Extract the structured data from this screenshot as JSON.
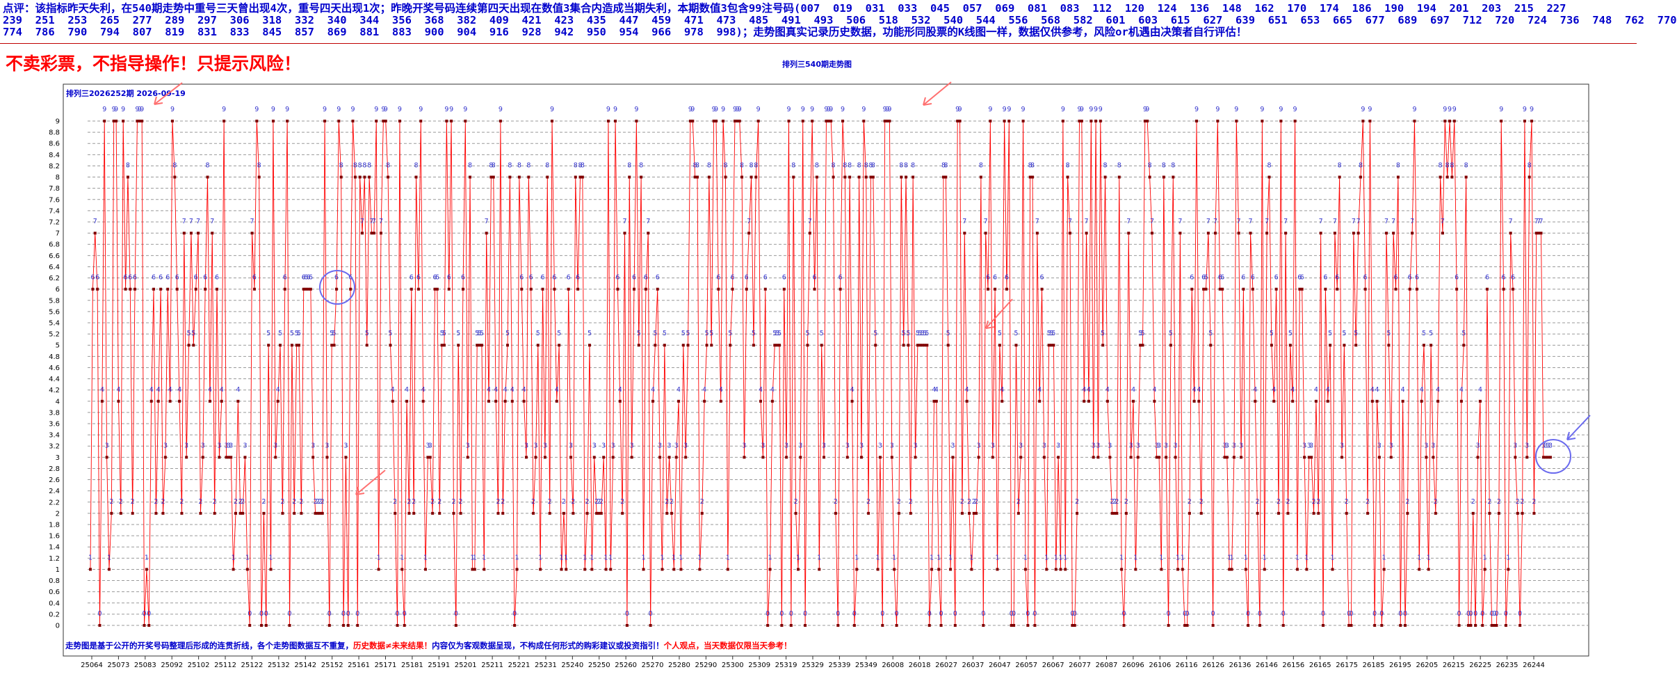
{
  "commentary": "点评：该指标昨天失利，在540期走势中重号三天曾出现4次，重号四天出现1次；昨晚开奖号码连续第四天出现在数值3集合内造成当期失利，本期数值3包含99注号码(007  019  031  033  045  057  069  081  083  112  120  124  136  148  162  170  174  186  190  194  201  203  215  227\n239  251  253  265  277  289  297  306  318  332  340  344  356  368  382  409  421  423  435  447  459  471  473  485  491  493  506  518  532  540  544  556  568  582  601  603  615  627  639  651  653  665  677  689  697  712  720  724  736  748  762  770\n774  786  790  794  807  819  831  833  845  857  869  881  883  900  904  916  928  942  950  954  966  978  998)；走势图真实记录历史数据，功能形同股票的K线图一样，数据仅供参考，风险or机遇由决策者自行评估！",
  "warning": "不卖彩票，不指导操作！只提示风险！",
  "chart_data": {
    "type": "line",
    "title": "排列三540期走势图",
    "inner_title": "排列三2026252期  2026-09-19",
    "y_ticks": [
      "0",
      "0.2",
      "0.4",
      "0.6",
      "0.8",
      "1",
      "1.2",
      "1.4",
      "1.6",
      "1.8",
      "2",
      "2.2",
      "2.4",
      "2.6",
      "2.8",
      "3",
      "3.2",
      "3.4",
      "3.6",
      "3.8",
      "4",
      "4.2",
      "4.4",
      "4.6",
      "4.8",
      "5",
      "5.2",
      "5.4",
      "5.6",
      "5.8",
      "6",
      "6.2",
      "6.4",
      "6.6",
      "6.8",
      "7",
      "7.2",
      "7.4",
      "7.6",
      "7.8",
      "8",
      "8.2",
      "8.4",
      "8.6",
      "8.8",
      "9"
    ],
    "ylim": [
      0,
      9
    ],
    "x_labels": [
      "25064",
      "25073",
      "25083",
      "25092",
      "25102",
      "25112",
      "25122",
      "25132",
      "25142",
      "25152",
      "25161",
      "25171",
      "25181",
      "25191",
      "25201",
      "25211",
      "25221",
      "25231",
      "25240",
      "25250",
      "25260",
      "25270",
      "25280",
      "25290",
      "25300",
      "25309",
      "25319",
      "25329",
      "25339",
      "25349",
      "26008",
      "26018",
      "26027",
      "26037",
      "26047",
      "26057",
      "26067",
      "26077",
      "26087",
      "26096",
      "26106",
      "26116",
      "26126",
      "26136",
      "26146",
      "26156",
      "26165",
      "26175",
      "26185",
      "26195",
      "26205",
      "26215",
      "26225",
      "26235",
      "26244"
    ],
    "series": [
      {
        "values": [
          1,
          6,
          7,
          6,
          0,
          4,
          9,
          3,
          1,
          2,
          9,
          9,
          4,
          2,
          9,
          6,
          8,
          6,
          2,
          6,
          9,
          9,
          9,
          0,
          1,
          0,
          4,
          6,
          2,
          4,
          6,
          2,
          3,
          6,
          4,
          9,
          8,
          6,
          4,
          2,
          7,
          3,
          5,
          7,
          5,
          6,
          7,
          2,
          3,
          6,
          8,
          4,
          7,
          2,
          6,
          3,
          4,
          9,
          3,
          3,
          3,
          1,
          2,
          4,
          2,
          2,
          3,
          1,
          0,
          7,
          6,
          9,
          8,
          0,
          2,
          0,
          5,
          1,
          9,
          3,
          4,
          5,
          2,
          6,
          9,
          0,
          5,
          2,
          5,
          5,
          2,
          6,
          6,
          6,
          6,
          3,
          2,
          2,
          2,
          2,
          9,
          3,
          0,
          5,
          5,
          6,
          9,
          8,
          0,
          3,
          0,
          6,
          9,
          8,
          0,
          8,
          7,
          8,
          5,
          8,
          7,
          7,
          9,
          1,
          7,
          9,
          9,
          8,
          5,
          4,
          2,
          0,
          9,
          1,
          0,
          4,
          2,
          6,
          2,
          8,
          6,
          9,
          4,
          1,
          3,
          3,
          2,
          6,
          6,
          2,
          5,
          5,
          9,
          6,
          9,
          2,
          0,
          5,
          2,
          6,
          9,
          3,
          8,
          1,
          1,
          5,
          5,
          5,
          1,
          7,
          4,
          8,
          8,
          4,
          2,
          9,
          2,
          4,
          5,
          8,
          4,
          0,
          1,
          8,
          6,
          4,
          3,
          8,
          6,
          2,
          3,
          5,
          1,
          6,
          3,
          8,
          2,
          9,
          6,
          4,
          5,
          1,
          2,
          1,
          6,
          3,
          2,
          8,
          6,
          8,
          8,
          1,
          2,
          5,
          1,
          3,
          2,
          2,
          2,
          3,
          1,
          9,
          1,
          3,
          9,
          6,
          4,
          2,
          7,
          0,
          8,
          3,
          6,
          9,
          5,
          8,
          1,
          6,
          7,
          0,
          4,
          5,
          6,
          3,
          1,
          5,
          2,
          3,
          2,
          1,
          3,
          4,
          1,
          5,
          3,
          5,
          9,
          9,
          8,
          8,
          1,
          2,
          4,
          5,
          8,
          5,
          9,
          9,
          6,
          4,
          9,
          8,
          1,
          5,
          6,
          9,
          9,
          9,
          8,
          3,
          6,
          7,
          8,
          5,
          8,
          9,
          4,
          3,
          6,
          0,
          1,
          4,
          5,
          5,
          5,
          0,
          6,
          3,
          9,
          0,
          8,
          2,
          1,
          3,
          9,
          0,
          5,
          7,
          9,
          6,
          8,
          1,
          5,
          3,
          9,
          9,
          9,
          8,
          2,
          0,
          6,
          9,
          8,
          3,
          8,
          4,
          0,
          1,
          8,
          3,
          9,
          8,
          2,
          8,
          8,
          5,
          1,
          3,
          0,
          9,
          9,
          9,
          3,
          1,
          0,
          2,
          8,
          5,
          8,
          5,
          2,
          8,
          3,
          5,
          5,
          5,
          5,
          5,
          0,
          1,
          4,
          4,
          1,
          0,
          8,
          8,
          5,
          1,
          3,
          0,
          9,
          9,
          2,
          7,
          4,
          2,
          1,
          2,
          2,
          3,
          8,
          0,
          7,
          6,
          9,
          3,
          6,
          1,
          5,
          4,
          9,
          6,
          9,
          0,
          0,
          5,
          2,
          3,
          9,
          1,
          0,
          8,
          8,
          0,
          7,
          4,
          6,
          3,
          1,
          5,
          5,
          5,
          1,
          3,
          1,
          9,
          1,
          8,
          7,
          0,
          0,
          2,
          9,
          9,
          4,
          7,
          4,
          9,
          3,
          9,
          3,
          9,
          5,
          8,
          4,
          3,
          2,
          2,
          2,
          8,
          1,
          0,
          2,
          7,
          3,
          4,
          1,
          3,
          5,
          5,
          9,
          9,
          8,
          7,
          4,
          3,
          3,
          1,
          8,
          3,
          0,
          5,
          8,
          3,
          1,
          7,
          1,
          0,
          0,
          2,
          6,
          4,
          9,
          4,
          2,
          6,
          6,
          7,
          5,
          0,
          7,
          9,
          6,
          6,
          3,
          3,
          1,
          1,
          3,
          9,
          7,
          3,
          6,
          1,
          0,
          7,
          6,
          4,
          2,
          0,
          9,
          1,
          7,
          8,
          5,
          4,
          6,
          2,
          9,
          0,
          7,
          2,
          5,
          4,
          9,
          1,
          6,
          6,
          3,
          1,
          3,
          3,
          2,
          4,
          2,
          7,
          0,
          6,
          4,
          5,
          1,
          7,
          6,
          8,
          3,
          5,
          2,
          0,
          0,
          7,
          5,
          7,
          8,
          9,
          6,
          2,
          9,
          4,
          0,
          4,
          3,
          0,
          1,
          7,
          5,
          3,
          7,
          6,
          8,
          0,
          4,
          0,
          2,
          6,
          7,
          9,
          6,
          1,
          4,
          5,
          3,
          1,
          5,
          3,
          2,
          4,
          8,
          7,
          9,
          8,
          9,
          8,
          9,
          6,
          0,
          4,
          5,
          8,
          0,
          0,
          2,
          0,
          3,
          4,
          0,
          1,
          6,
          2,
          0,
          0,
          0,
          2,
          9,
          6,
          0,
          1,
          7,
          6,
          3,
          2,
          0,
          2,
          9,
          3,
          8,
          9,
          2,
          7,
          7,
          7,
          3,
          3,
          3,
          3
        ]
      }
    ],
    "highlight_values": [
      3,
      3,
      3,
      3
    ],
    "grid": true,
    "line_color": "#ff0000",
    "point_color": "#800000",
    "label_color": "#3333cc"
  },
  "footer": {
    "part1": "走势图是基于公开的开奖号码整理后形成的连贯折线，各个走势图数据互不重复，",
    "part2": "历史数据≠未来结果！",
    "part3": "内容仅为客观数据呈现，不构成任何形式的购彩建议或投资指引！",
    "part4": "个人观点，当天数据仅限当天参考！"
  }
}
